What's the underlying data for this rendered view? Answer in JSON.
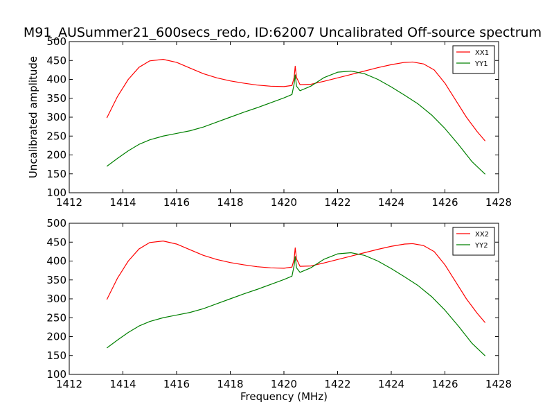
{
  "figure": {
    "title": "M91_AUSummer21_600secs_redo, ID:62007 Uncalibrated Off-source spectrum"
  },
  "chart_data": [
    {
      "type": "line",
      "ylabel": "Uncalibrated amplitude",
      "xlabel": "",
      "xlim": [
        1412,
        1428
      ],
      "ylim": [
        100,
        500
      ],
      "xticks": [
        1412,
        1414,
        1416,
        1418,
        1420,
        1422,
        1424,
        1426,
        1428
      ],
      "yticks": [
        100,
        150,
        200,
        250,
        300,
        350,
        400,
        450,
        500
      ],
      "legend_position": "top-right",
      "series": [
        {
          "name": "XX1",
          "color": "#ff0000",
          "x": [
            1413.4,
            1413.8,
            1414.2,
            1414.6,
            1415.0,
            1415.5,
            1416.0,
            1416.5,
            1417.0,
            1417.5,
            1418.0,
            1418.5,
            1419.0,
            1419.5,
            1420.0,
            1420.3,
            1420.38,
            1420.42,
            1420.47,
            1420.6,
            1421.0,
            1421.5,
            1422.0,
            1422.5,
            1423.0,
            1423.5,
            1424.0,
            1424.5,
            1424.8,
            1425.2,
            1425.6,
            1426.0,
            1426.4,
            1426.8,
            1427.2,
            1427.5
          ],
          "y": [
            298,
            355,
            400,
            432,
            449,
            453,
            445,
            430,
            415,
            404,
            396,
            390,
            385,
            382,
            381,
            384,
            405,
            435,
            405,
            386,
            387,
            395,
            404,
            413,
            422,
            431,
            439,
            445,
            446,
            441,
            425,
            390,
            345,
            300,
            262,
            237
          ]
        },
        {
          "name": "YY1",
          "color": "#008000",
          "x": [
            1413.4,
            1413.8,
            1414.2,
            1414.6,
            1415.0,
            1415.5,
            1416.0,
            1416.5,
            1417.0,
            1417.5,
            1418.0,
            1418.5,
            1419.0,
            1419.5,
            1420.0,
            1420.3,
            1420.38,
            1420.42,
            1420.47,
            1420.6,
            1421.0,
            1421.5,
            1422.0,
            1422.5,
            1423.0,
            1423.5,
            1424.0,
            1424.5,
            1425.0,
            1425.5,
            1426.0,
            1426.5,
            1427.0,
            1427.5
          ],
          "y": [
            170,
            191,
            211,
            228,
            240,
            250,
            257,
            264,
            274,
            287,
            300,
            313,
            325,
            338,
            351,
            360,
            388,
            412,
            382,
            370,
            382,
            405,
            419,
            422,
            415,
            400,
            380,
            358,
            335,
            306,
            270,
            228,
            183,
            149
          ]
        }
      ]
    },
    {
      "type": "line",
      "ylabel": "",
      "xlabel": "Frequency (MHz)",
      "xlim": [
        1412,
        1428
      ],
      "ylim": [
        100,
        500
      ],
      "xticks": [
        1412,
        1414,
        1416,
        1418,
        1420,
        1422,
        1424,
        1426,
        1428
      ],
      "yticks": [
        100,
        150,
        200,
        250,
        300,
        350,
        400,
        450,
        500
      ],
      "legend_position": "top-right",
      "series": [
        {
          "name": "XX2",
          "color": "#ff0000",
          "x": [
            1413.4,
            1413.8,
            1414.2,
            1414.6,
            1415.0,
            1415.5,
            1416.0,
            1416.5,
            1417.0,
            1417.5,
            1418.0,
            1418.5,
            1419.0,
            1419.5,
            1420.0,
            1420.3,
            1420.38,
            1420.42,
            1420.47,
            1420.6,
            1421.0,
            1421.5,
            1422.0,
            1422.5,
            1423.0,
            1423.5,
            1424.0,
            1424.5,
            1424.8,
            1425.2,
            1425.6,
            1426.0,
            1426.4,
            1426.8,
            1427.2,
            1427.5
          ],
          "y": [
            298,
            355,
            400,
            432,
            449,
            453,
            445,
            430,
            415,
            404,
            396,
            390,
            385,
            382,
            381,
            384,
            405,
            435,
            405,
            386,
            387,
            395,
            404,
            413,
            422,
            431,
            439,
            445,
            446,
            441,
            425,
            390,
            345,
            300,
            262,
            237
          ]
        },
        {
          "name": "YY2",
          "color": "#008000",
          "x": [
            1413.4,
            1413.8,
            1414.2,
            1414.6,
            1415.0,
            1415.5,
            1416.0,
            1416.5,
            1417.0,
            1417.5,
            1418.0,
            1418.5,
            1419.0,
            1419.5,
            1420.0,
            1420.3,
            1420.38,
            1420.42,
            1420.47,
            1420.6,
            1421.0,
            1421.5,
            1422.0,
            1422.5,
            1423.0,
            1423.5,
            1424.0,
            1424.5,
            1425.0,
            1425.5,
            1426.0,
            1426.5,
            1427.0,
            1427.5
          ],
          "y": [
            170,
            191,
            211,
            228,
            240,
            250,
            257,
            264,
            274,
            287,
            300,
            313,
            325,
            338,
            351,
            360,
            388,
            412,
            382,
            370,
            382,
            405,
            419,
            422,
            415,
            400,
            380,
            358,
            335,
            306,
            270,
            228,
            183,
            149
          ]
        }
      ]
    }
  ]
}
